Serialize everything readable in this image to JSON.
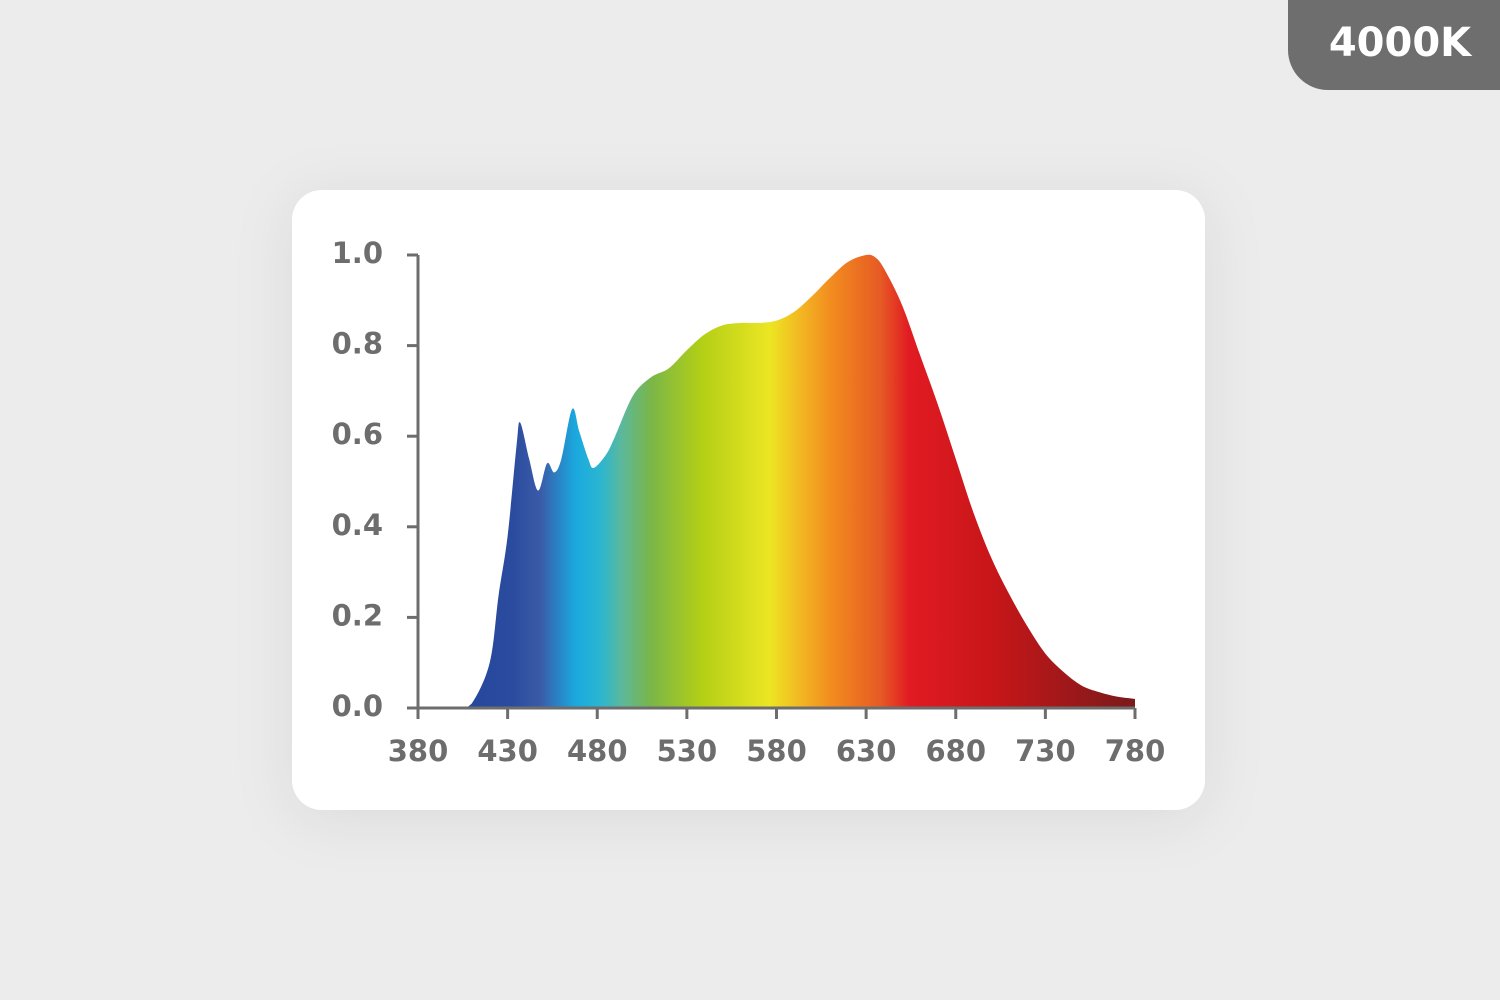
{
  "badge": "4000K",
  "chart_data": {
    "type": "area",
    "x": [
      380,
      403,
      410,
      420,
      425,
      430,
      435,
      437,
      442,
      447,
      452,
      456,
      460,
      466,
      470,
      475,
      478,
      485,
      490,
      500,
      510,
      520,
      530,
      540,
      550,
      560,
      570,
      580,
      590,
      600,
      610,
      620,
      630,
      635,
      640,
      650,
      660,
      670,
      680,
      690,
      700,
      710,
      720,
      730,
      740,
      750,
      760,
      770,
      780
    ],
    "values": [
      0,
      0,
      0.01,
      0.1,
      0.25,
      0.38,
      0.58,
      0.63,
      0.55,
      0.48,
      0.54,
      0.52,
      0.55,
      0.66,
      0.61,
      0.55,
      0.53,
      0.56,
      0.6,
      0.69,
      0.73,
      0.75,
      0.79,
      0.825,
      0.845,
      0.85,
      0.85,
      0.855,
      0.875,
      0.91,
      0.95,
      0.985,
      1.0,
      0.995,
      0.97,
      0.89,
      0.78,
      0.67,
      0.55,
      0.43,
      0.33,
      0.25,
      0.18,
      0.12,
      0.08,
      0.05,
      0.035,
      0.025,
      0.02
    ],
    "xlim": [
      380,
      780
    ],
    "ylim": [
      0,
      1
    ],
    "xticks": [
      380,
      430,
      480,
      530,
      580,
      630,
      680,
      730,
      780
    ],
    "yticks": [
      {
        "value": 0,
        "label": "0.0"
      },
      0.2,
      0.4,
      0.6,
      0.8,
      {
        "value": 1,
        "label": "1.0"
      }
    ]
  }
}
